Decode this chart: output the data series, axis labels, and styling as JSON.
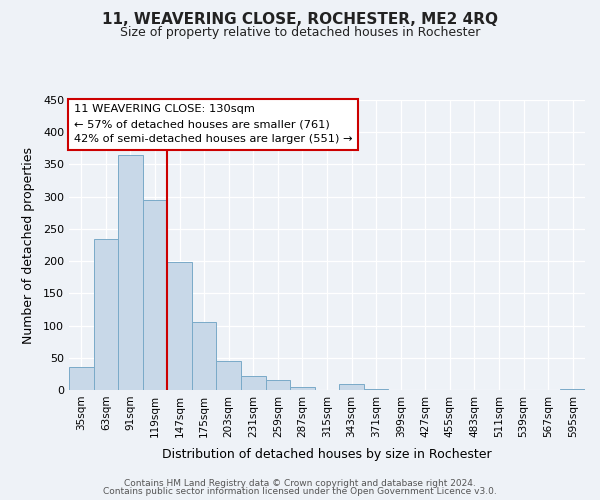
{
  "title": "11, WEAVERING CLOSE, ROCHESTER, ME2 4RQ",
  "subtitle": "Size of property relative to detached houses in Rochester",
  "xlabel": "Distribution of detached houses by size in Rochester",
  "ylabel": "Number of detached properties",
  "bar_color": "#c8d8e8",
  "bar_edgecolor": "#7aaac8",
  "background_color": "#eef2f7",
  "categories": [
    "35sqm",
    "63sqm",
    "91sqm",
    "119sqm",
    "147sqm",
    "175sqm",
    "203sqm",
    "231sqm",
    "259sqm",
    "287sqm",
    "315sqm",
    "343sqm",
    "371sqm",
    "399sqm",
    "427sqm",
    "455sqm",
    "483sqm",
    "511sqm",
    "539sqm",
    "567sqm",
    "595sqm"
  ],
  "values": [
    35,
    235,
    365,
    295,
    198,
    106,
    45,
    22,
    15,
    4,
    0,
    9,
    2,
    0,
    0,
    0,
    0,
    0,
    0,
    0,
    2
  ],
  "vline_pos": 3.5,
  "vline_color": "#cc0000",
  "annotation_title": "11 WEAVERING CLOSE: 130sqm",
  "annotation_line1": "← 57% of detached houses are smaller (761)",
  "annotation_line2": "42% of semi-detached houses are larger (551) →",
  "annotation_box_edgecolor": "#cc0000",
  "ylim": [
    0,
    450
  ],
  "yticks": [
    0,
    50,
    100,
    150,
    200,
    250,
    300,
    350,
    400,
    450
  ],
  "footer1": "Contains HM Land Registry data © Crown copyright and database right 2024.",
  "footer2": "Contains public sector information licensed under the Open Government Licence v3.0."
}
